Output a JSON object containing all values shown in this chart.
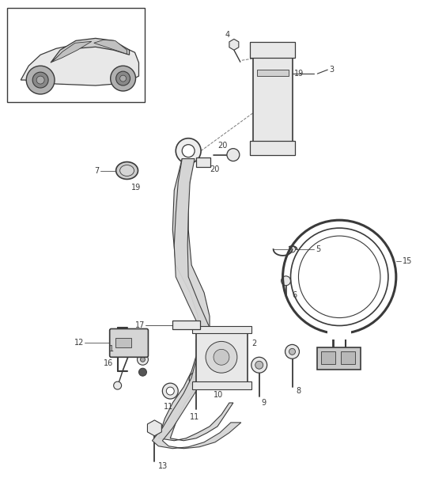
{
  "background_color": "#ffffff",
  "fig_width": 5.45,
  "fig_height": 6.28,
  "dpi": 100,
  "color_line": "#3a3a3a",
  "color_fill_light": "#e8e8e8",
  "color_fill_mid": "#cccccc",
  "color_fill_dark": "#aaaaaa"
}
